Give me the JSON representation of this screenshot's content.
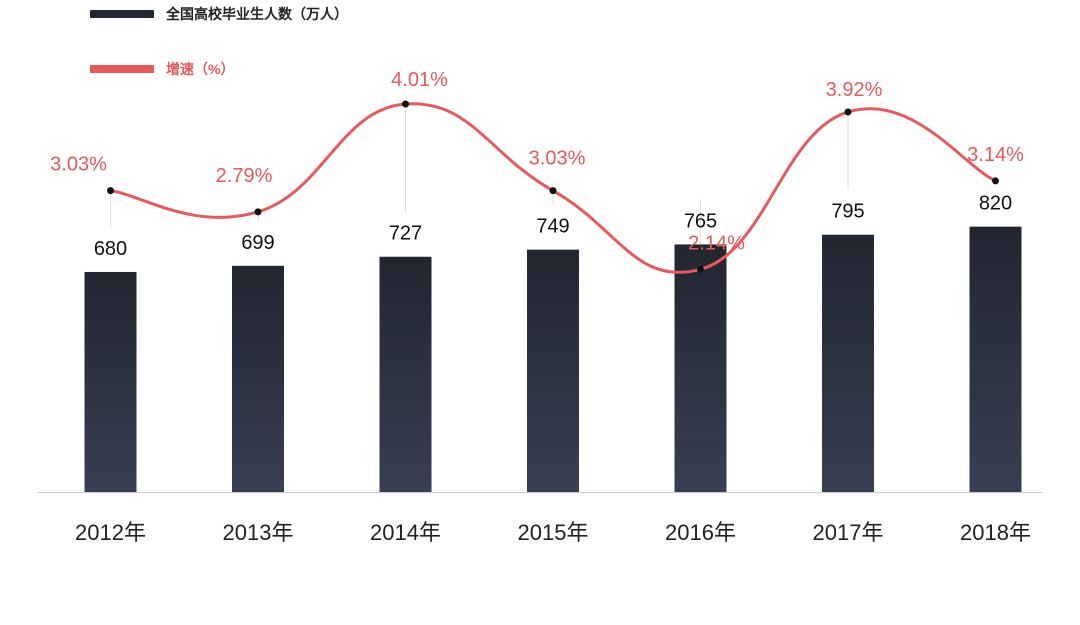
{
  "chart_data": {
    "type": "bar",
    "categories": [
      "2012年",
      "2013年",
      "2014年",
      "2015年",
      "2016年",
      "2017年",
      "2018年"
    ],
    "series": [
      {
        "name": "全国高校毕业生人数（万人）",
        "type": "bar",
        "values": [
          680,
          699,
          727,
          749,
          765,
          795,
          820
        ],
        "labels": [
          "680",
          "699",
          "727",
          "749",
          "765",
          "795",
          "820"
        ],
        "color": "#232833"
      },
      {
        "name": "增速（%）",
        "type": "line",
        "values": [
          3.03,
          2.79,
          4.01,
          3.03,
          2.14,
          3.92,
          3.14
        ],
        "labels": [
          "3.03%",
          "2.79%",
          "4.01%",
          "3.03%",
          "2.14%",
          "3.92%",
          "3.14%"
        ],
        "color": "#e9595a"
      }
    ],
    "grid": false,
    "legend_position": "top-left"
  },
  "colors": {
    "bar_top": "#222631",
    "bar_bottom": "#383f52",
    "line": "#e9595a",
    "label_text": "#111111",
    "axis": "#cccccc"
  }
}
